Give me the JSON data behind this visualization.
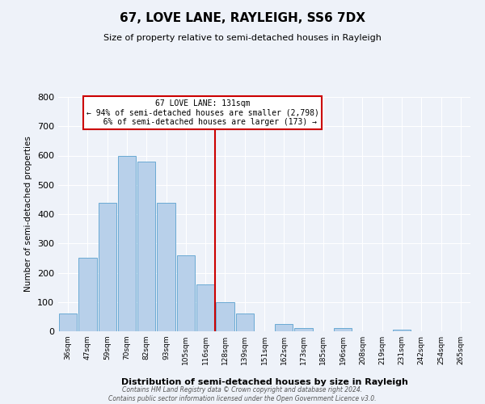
{
  "title": "67, LOVE LANE, RAYLEIGH, SS6 7DX",
  "subtitle": "Size of property relative to semi-detached houses in Rayleigh",
  "bar_labels": [
    "36sqm",
    "47sqm",
    "59sqm",
    "70sqm",
    "82sqm",
    "93sqm",
    "105sqm",
    "116sqm",
    "128sqm",
    "139sqm",
    "151sqm",
    "162sqm",
    "173sqm",
    "185sqm",
    "196sqm",
    "208sqm",
    "219sqm",
    "231sqm",
    "242sqm",
    "254sqm",
    "265sqm"
  ],
  "bar_values": [
    60,
    250,
    440,
    600,
    580,
    440,
    260,
    160,
    100,
    60,
    0,
    25,
    10,
    0,
    10,
    0,
    0,
    5,
    0,
    0,
    0
  ],
  "bar_color": "#b8d0ea",
  "bar_edge_color": "#6aaad4",
  "vline_index": 8,
  "property_label": "67 LOVE LANE: 131sqm",
  "smaller_pct": 94,
  "smaller_count": "2,798",
  "larger_pct": 6,
  "larger_count": 173,
  "vline_color": "#cc0000",
  "xlabel": "Distribution of semi-detached houses by size in Rayleigh",
  "ylabel": "Number of semi-detached properties",
  "ylim": [
    0,
    800
  ],
  "yticks": [
    0,
    100,
    200,
    300,
    400,
    500,
    600,
    700,
    800
  ],
  "bg_color": "#eef2f9",
  "grid_color": "#ffffff",
  "footer_line1": "Contains HM Land Registry data © Crown copyright and database right 2024.",
  "footer_line2": "Contains public sector information licensed under the Open Government Licence v3.0."
}
